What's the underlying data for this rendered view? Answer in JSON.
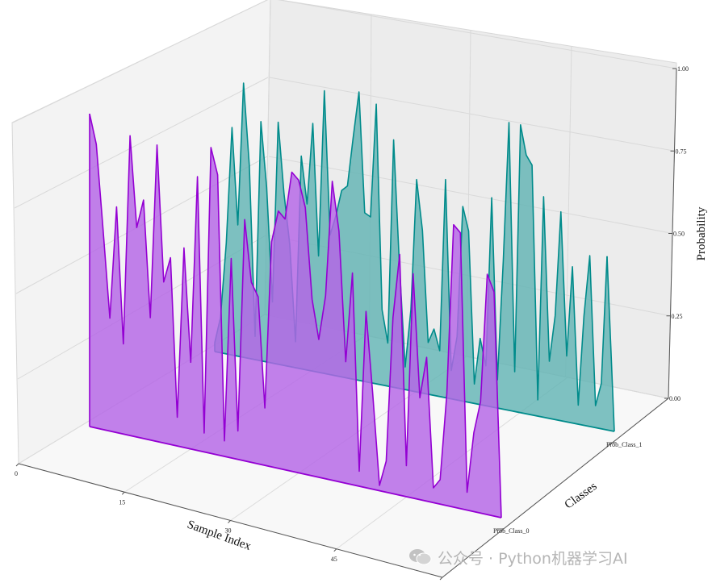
{
  "chart_data": {
    "type": "area",
    "projection": "3d",
    "xlabel": "Sample Index",
    "ylabel": "Classes",
    "zlabel": "Probability",
    "x_ticks": [
      "0",
      "15",
      "30",
      "45",
      "60"
    ],
    "y_ticks": [
      "Prob_Class_0",
      "Prob_Class_1"
    ],
    "z_ticks": [
      "0.00",
      "0.25",
      "0.50",
      "0.75",
      "1.00"
    ],
    "xlim": [
      0,
      60
    ],
    "zlim": [
      0,
      1
    ],
    "grid": true,
    "series": [
      {
        "name": "Prob_Class_0",
        "color": "#9400d3",
        "fill_color": "#b565e6",
        "values": [
          0.97,
          0.88,
          0.62,
          0.35,
          0.7,
          0.28,
          0.93,
          0.65,
          0.74,
          0.38,
          0.92,
          0.5,
          0.58,
          0.09,
          0.62,
          0.27,
          0.85,
          0.06,
          0.95,
          0.87,
          0.05,
          0.62,
          0.09,
          0.75,
          0.56,
          0.52,
          0.18,
          0.7,
          0.8,
          0.78,
          0.93,
          0.91,
          0.83,
          0.55,
          0.43,
          0.57,
          0.93,
          0.78,
          0.38,
          0.66,
          0.05,
          0.55,
          0.3,
          0.02,
          0.1,
          0.55,
          0.75,
          0.1,
          0.7,
          0.32,
          0.45,
          0.05,
          0.08,
          0.35,
          0.88,
          0.86,
          0.06,
          0.25,
          0.35,
          0.75,
          0.7
        ]
      },
      {
        "name": "Prob_Class_1",
        "color": "#008b8b",
        "fill_color": "#5fb3b3",
        "values": [
          0.03,
          0.12,
          0.38,
          0.78,
          0.45,
          0.94,
          0.66,
          0.08,
          0.82,
          0.6,
          0.21,
          0.83,
          0.59,
          0.42,
          0.09,
          0.73,
          0.57,
          0.85,
          0.4,
          0.97,
          0.48,
          0.55,
          0.64,
          0.66,
          0.83,
          0.99,
          0.58,
          0.57,
          0.96,
          0.26,
          0.15,
          0.85,
          0.43,
          0.08,
          0.28,
          0.73,
          0.56,
          0.18,
          0.23,
          0.16,
          0.75,
          0.1,
          0.22,
          0.67,
          0.59,
          0.07,
          0.23,
          0.14,
          0.72,
          0.1,
          0.51,
          0.99,
          0.14,
          0.99,
          0.89,
          0.86,
          0.06,
          0.76,
          0.2,
          0.36,
          0.72,
          0.23,
          0.54,
          0.07,
          0.38,
          0.59,
          0.08,
          0.16,
          0.6
        ]
      }
    ]
  },
  "watermark": {
    "text": "公众号 · Python机器学习AI",
    "icon": "wechat-icon"
  }
}
